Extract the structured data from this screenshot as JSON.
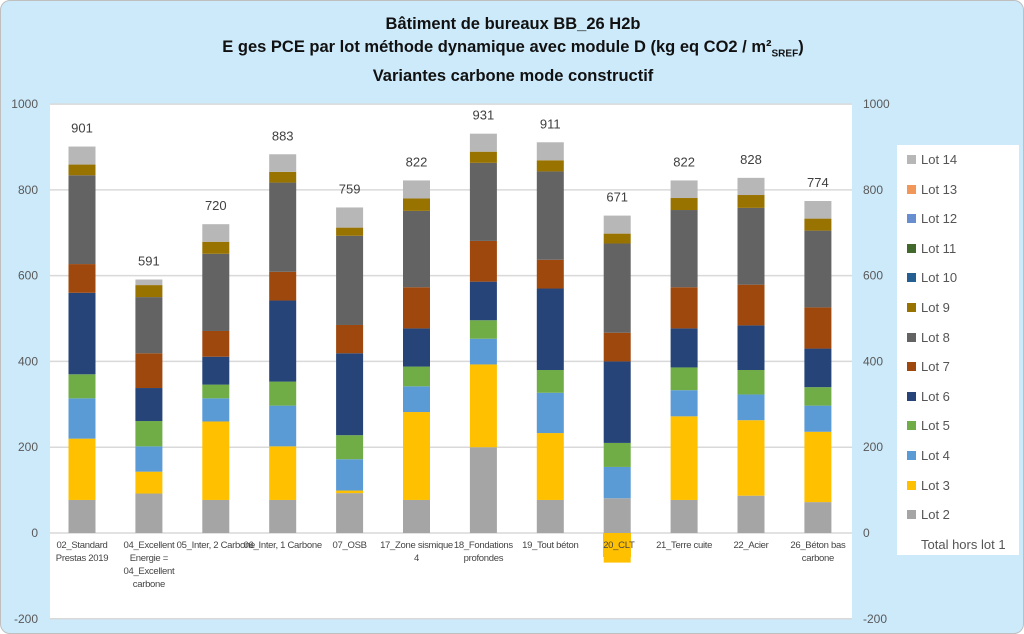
{
  "chart_data": {
    "type": "bar",
    "stacked": true,
    "title": [
      "Bâtiment de bureaux BB_26 H2b",
      "E ges PCE par lot méthode dynamique avec module D (kg eq CO2 / m²",
      "SREF",
      ")",
      "Variantes carbone mode constructif"
    ],
    "ylim": [
      -200,
      1000
    ],
    "yticks": [
      -200,
      0,
      200,
      400,
      600,
      800,
      1000
    ],
    "secondary_yticks": [
      -200,
      0,
      200,
      400,
      600,
      800,
      1000
    ],
    "grid": true,
    "legend_position": "right",
    "categories": [
      "02_Standard Prestas 2019",
      "04_Excellent Energie = 04_Excellent carbone",
      "05_Inter, 2 Carbone",
      "06_Inter, 1 Carbone",
      "07_OSB",
      "17_Zone sismique 4",
      "18_Fondations profondes",
      "19_Tout béton",
      "20_CLT",
      "21_Terre cuite",
      "22_Acier",
      "26_Béton bas carbone"
    ],
    "highlighted_category": "20_CLT",
    "series": [
      {
        "name": "Lot 2",
        "color": "#a5a5a5",
        "values": [
          77,
          92,
          77,
          77,
          93,
          77,
          200,
          77,
          81,
          77,
          87,
          72
        ]
      },
      {
        "name": "Lot 3",
        "color": "#ffc000",
        "values": [
          143,
          51,
          183,
          125,
          6,
          205,
          193,
          156,
          -69,
          195,
          176,
          164
        ]
      },
      {
        "name": "Lot 4",
        "color": "#5b9bd5",
        "values": [
          94,
          59,
          54,
          95,
          73,
          60,
          60,
          94,
          73,
          61,
          60,
          61
        ]
      },
      {
        "name": "Lot 5",
        "color": "#70ad47",
        "values": [
          56,
          59,
          32,
          56,
          56,
          46,
          43,
          53,
          56,
          53,
          57,
          43
        ]
      },
      {
        "name": "Lot 6",
        "color": "#264478",
        "values": [
          190,
          77,
          65,
          189,
          191,
          89,
          90,
          190,
          190,
          91,
          104,
          90
        ]
      },
      {
        "name": "Lot 7",
        "color": "#9e480e",
        "values": [
          67,
          81,
          60,
          67,
          66,
          96,
          95,
          67,
          67,
          96,
          95,
          96
        ]
      },
      {
        "name": "Lot 8",
        "color": "#636363",
        "values": [
          207,
          131,
          180,
          208,
          208,
          178,
          182,
          206,
          208,
          180,
          179,
          179
        ]
      },
      {
        "name": "Lot 9",
        "color": "#997300",
        "values": [
          25,
          28,
          28,
          25,
          19,
          29,
          26,
          26,
          23,
          28,
          30,
          28
        ]
      },
      {
        "name": "Lot 10",
        "color": "#255e91",
        "values": [
          0,
          0,
          0,
          0,
          0,
          0,
          0,
          0,
          0,
          0,
          0,
          0
        ]
      },
      {
        "name": "Lot 11",
        "color": "#43682b",
        "values": [
          0,
          0,
          0,
          0,
          0,
          0,
          0,
          0,
          0,
          0,
          0,
          0
        ]
      },
      {
        "name": "Lot 12",
        "color": "#698ed0",
        "values": [
          0,
          0,
          0,
          0,
          0,
          0,
          0,
          0,
          0,
          0,
          0,
          0
        ]
      },
      {
        "name": "Lot 13",
        "color": "#f1975a",
        "values": [
          0,
          0,
          0,
          0,
          0,
          0,
          0,
          0,
          0,
          0,
          0,
          0
        ]
      },
      {
        "name": "Lot 14",
        "color": "#b7b7b7",
        "values": [
          42,
          13,
          41,
          41,
          47,
          42,
          42,
          42,
          42,
          41,
          40,
          41
        ]
      }
    ],
    "total_series": {
      "name": "Total hors lot 1",
      "values": [
        901,
        591,
        720,
        883,
        759,
        822,
        931,
        911,
        671,
        822,
        828,
        774
      ]
    }
  }
}
